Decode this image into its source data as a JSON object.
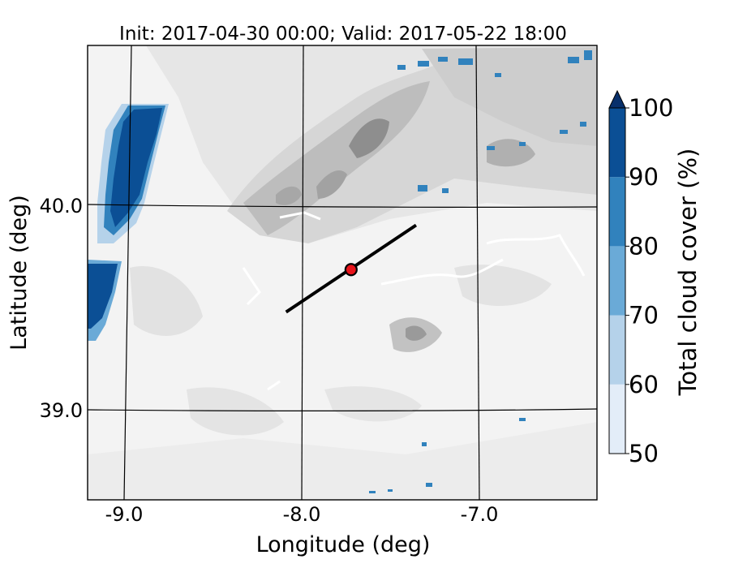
{
  "title": "Init: 2017-04-30 00:00; Valid: 2017-05-22 18:00",
  "xlabel": "Longitude (deg)",
  "ylabel": "Latitude (deg)",
  "x_ticks": [
    "-9.0",
    "-8.0",
    "-7.0"
  ],
  "y_ticks": [
    "40.0",
    "39.0"
  ],
  "colorbar": {
    "label": "Total cloud cover (%)",
    "ticks": [
      "50",
      "60",
      "70",
      "80",
      "90",
      "100"
    ],
    "levels": [
      50,
      60,
      70,
      80,
      90,
      100
    ],
    "colors": [
      "#e3edf8",
      "#b5d2ea",
      "#6aaad7",
      "#3182bd",
      "#0b4f95",
      "#08306b"
    ],
    "extend": "max"
  },
  "map": {
    "background_field": "terrain height (grey shading)",
    "terrain_colors": [
      "#f6f6f6",
      "#e9e9e9",
      "#d9d9d9",
      "#c4c4c4",
      "#a8a8a8",
      "#8a8a8a"
    ],
    "gridline_color": "#000000",
    "cross_section": {
      "start_lon": -8.12,
      "start_lat": 39.48,
      "end_lon": -7.38,
      "end_lat": 39.91,
      "line_color": "#000000"
    },
    "marker": {
      "lon": -7.75,
      "lat": 39.69,
      "fill": "#e8141b",
      "edge": "#000000"
    },
    "lon_range": [
      -9.25,
      -6.35
    ],
    "lat_range": [
      38.55,
      40.8
    ]
  }
}
